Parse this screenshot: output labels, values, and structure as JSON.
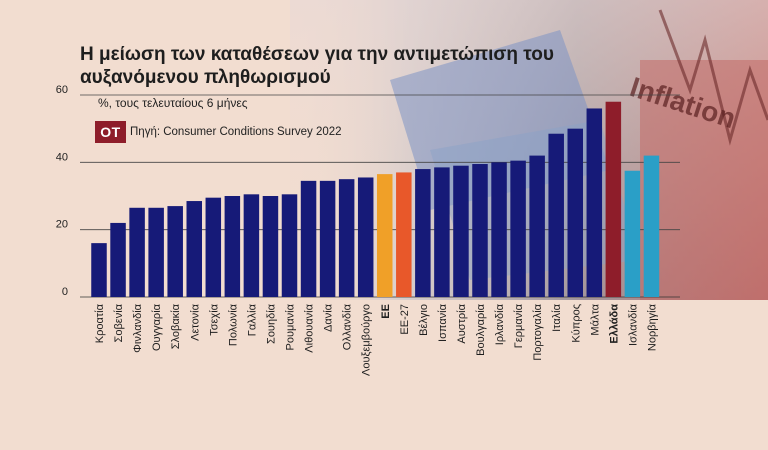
{
  "header": {
    "title": "Η μείωση των καταθέσεων για την αντιμετώπιση του αυξανόμενου πληθωρισμού",
    "subtitle": "%, τους τελευταίους 6 μήνες",
    "logo": "OT",
    "source": "Πηγή: Consumer Conditions Survey 2022"
  },
  "background": {
    "photo_text": "Inflation"
  },
  "colors": {
    "default_bar": "#161a78",
    "eu_bar": "#f0a028",
    "eu27_bar": "#e8582a",
    "greece_bar": "#8e1d2a",
    "non_eu_bar": "#2a9fc7",
    "background": "#f2ddd0"
  },
  "chart_data": {
    "type": "bar",
    "title": "Η μείωση των καταθέσεων για την αντιμετώπιση του αυξανόμενου πληθωρισμού",
    "subtitle": "%, τους τελευταίους 6 μήνες",
    "ylim": [
      0,
      60
    ],
    "yticks": [
      0,
      20,
      40,
      60
    ],
    "grid": true,
    "categories": [
      "Κροατία",
      "Σοβενία",
      "Φινλανδία",
      "Ουγγαρία",
      "Σλοβακία",
      "Λετονία",
      "Τσεχία",
      "Πολωνία",
      "Γαλλία",
      "Σουηδία",
      "Ρουμανία",
      "Λιθουανία",
      "Δανία",
      "Ολλανδία",
      "Λουξεμβούργο",
      "ΕΕ",
      "ΕΕ-27",
      "Βέλγιο",
      "Ισπανία",
      "Αυστρία",
      "Βουλγαρία",
      "Ιρλανδία",
      "Γερμανία",
      "Πορτογαλία",
      "Ιταλία",
      "Κύπρος",
      "Μάλτα",
      "Ελλάδα",
      "Ισλανδία",
      "Νορβηγία"
    ],
    "values": [
      16,
      22,
      26.5,
      26.5,
      27,
      28.5,
      29.5,
      30,
      30.5,
      30,
      30.5,
      34.5,
      34.5,
      35,
      35.5,
      36.5,
      37,
      38,
      38.5,
      39,
      39.5,
      40,
      40.5,
      42,
      48.5,
      50,
      56,
      58,
      37.5,
      42
    ],
    "bold_categories": [
      "ΕΕ",
      "Ελλάδα"
    ],
    "bar_colors": [
      "default",
      "default",
      "default",
      "default",
      "default",
      "default",
      "default",
      "default",
      "default",
      "default",
      "default",
      "default",
      "default",
      "default",
      "default",
      "eu",
      "eu27",
      "default",
      "default",
      "default",
      "default",
      "default",
      "default",
      "default",
      "default",
      "default",
      "default",
      "greece",
      "non_eu",
      "non_eu"
    ]
  }
}
